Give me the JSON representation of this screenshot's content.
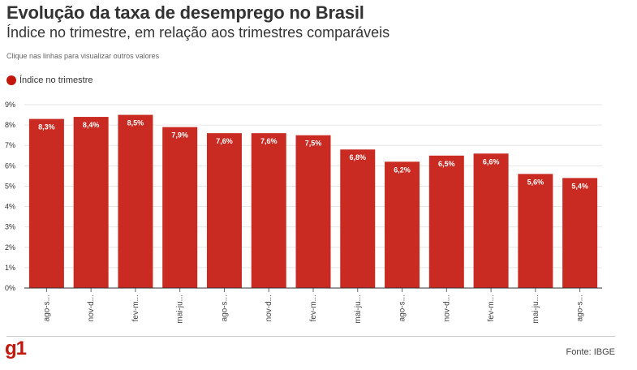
{
  "header": {
    "title": "Evolução da taxa de desemprego no Brasil",
    "subtitle": "Índice no trimestre, em relação aos trimestres comparáveis",
    "hint": "Clique nas linhas para visualizar outros valores"
  },
  "legend": {
    "label": "Índice no trimestre",
    "color": "#c4170c"
  },
  "footer": {
    "logo": "g1",
    "source_prefix": "Fonte:",
    "source": "IBGE"
  },
  "colors": {
    "bar": "#c92a22",
    "grid": "#e6e6e6",
    "axis": "#333333",
    "label": "#ffffff"
  },
  "chart_data": {
    "type": "bar",
    "title": "Evolução da taxa de desemprego no Brasil",
    "subtitle": "Índice no trimestre, em relação aos trimestres comparáveis",
    "categories": [
      "ago-s...",
      "nov-d...",
      "fev-m...",
      "mai-ju...",
      "ago-s...",
      "nov-d...",
      "fev-m...",
      "mai-ju...",
      "ago-s...",
      "nov-d...",
      "fev-m...",
      "mai-ju...",
      "ago-s..."
    ],
    "series": [
      {
        "name": "Índice no trimestre",
        "values": [
          8.3,
          8.4,
          8.5,
          7.9,
          7.6,
          7.6,
          7.5,
          6.8,
          6.2,
          6.5,
          6.6,
          5.6,
          5.4
        ],
        "labels": [
          "8,3%",
          "8,4%",
          "8,5%",
          "7,9%",
          "7,6%",
          "7,6%",
          "7,5%",
          "6,8%",
          "6,2%",
          "6,5%",
          "6,6%",
          "5,6%",
          "5,4%"
        ]
      }
    ],
    "yticks": [
      0,
      1,
      2,
      3,
      4,
      5,
      6,
      7,
      8,
      9
    ],
    "ytick_labels": [
      "0%",
      "1%",
      "2%",
      "3%",
      "4%",
      "5%",
      "6%",
      "7%",
      "8%",
      "9%"
    ],
    "ylim": [
      0,
      9
    ],
    "grid": true,
    "legend_position": "top-left",
    "xlabel": "",
    "ylabel": ""
  }
}
